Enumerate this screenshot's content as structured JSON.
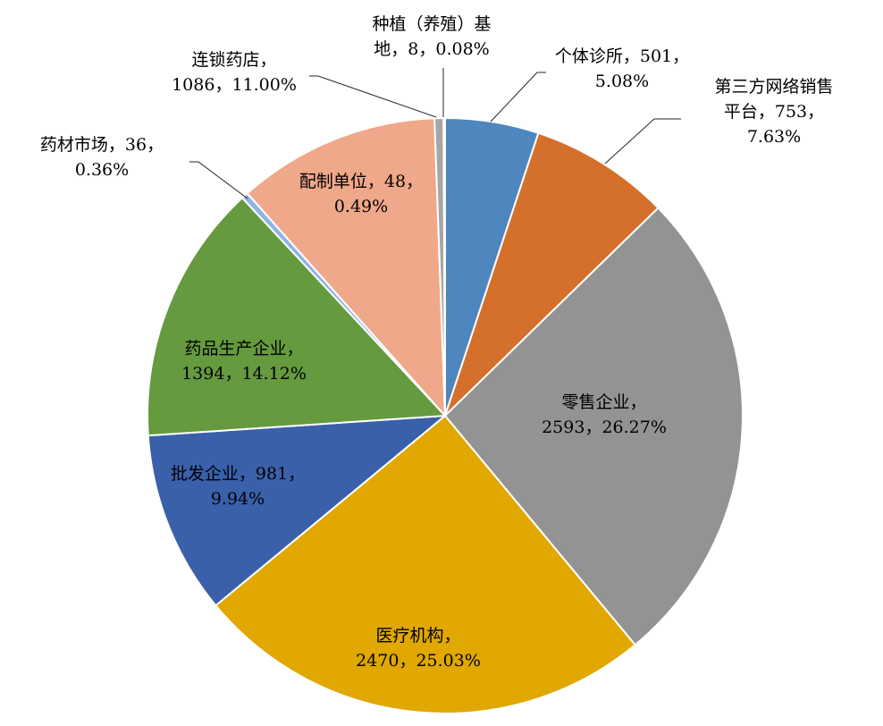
{
  "chart_data": {
    "type": "pie",
    "start_angle_deg": 0,
    "direction": "clockwise",
    "slices": [
      {
        "name": "个体诊所",
        "value": 501,
        "percent": "5.08%",
        "color": "#4E86BD",
        "label_lines": [
          "个体诊所，501，",
          "5.08%"
        ]
      },
      {
        "name": "第三方网络销售平台",
        "value": 753,
        "percent": "7.63%",
        "color": "#D4702B",
        "label_lines": [
          "第三方网络销售",
          "平台，753，",
          "7.63%"
        ]
      },
      {
        "name": "零售企业",
        "value": 2593,
        "percent": "26.27%",
        "color": "#939393",
        "label_lines": [
          "零售企业，",
          "2593，26.27%"
        ]
      },
      {
        "name": "医疗机构",
        "value": 2470,
        "percent": "25.03%",
        "color": "#E0A800",
        "label_lines": [
          "医疗机构，",
          "2470，25.03%"
        ]
      },
      {
        "name": "批发企业",
        "value": 981,
        "percent": "9.94%",
        "color": "#3A60AA",
        "label_lines": [
          "批发企业，981，",
          "9.94%"
        ]
      },
      {
        "name": "药品生产企业",
        "value": 1394,
        "percent": "14.12%",
        "color": "#659A3F",
        "label_lines": [
          "药品生产企业，",
          "1394，14.12%"
        ]
      },
      {
        "name": "药材市场",
        "value": 36,
        "percent": "0.36%",
        "color": "#8DB4E2",
        "label_lines": [
          "药材市场，36，",
          "0.36%"
        ]
      },
      {
        "name": "连锁药店",
        "value": 1086,
        "percent": "11.00%",
        "color": "#EFA88A",
        "label_lines": [
          "连锁药店，",
          "1086，11.00%"
        ]
      },
      {
        "name": "配制单位",
        "value": 48,
        "percent": "0.49%",
        "color": "#A6A6A6",
        "label_lines": [
          "配制单位，48，",
          "0.49%"
        ]
      },
      {
        "name": "种植（养殖）基地",
        "value": 8,
        "percent": "0.08%",
        "color": "#C9B27A",
        "label_lines": [
          "种植（养殖）基",
          "地，8，0.08%"
        ]
      }
    ]
  }
}
